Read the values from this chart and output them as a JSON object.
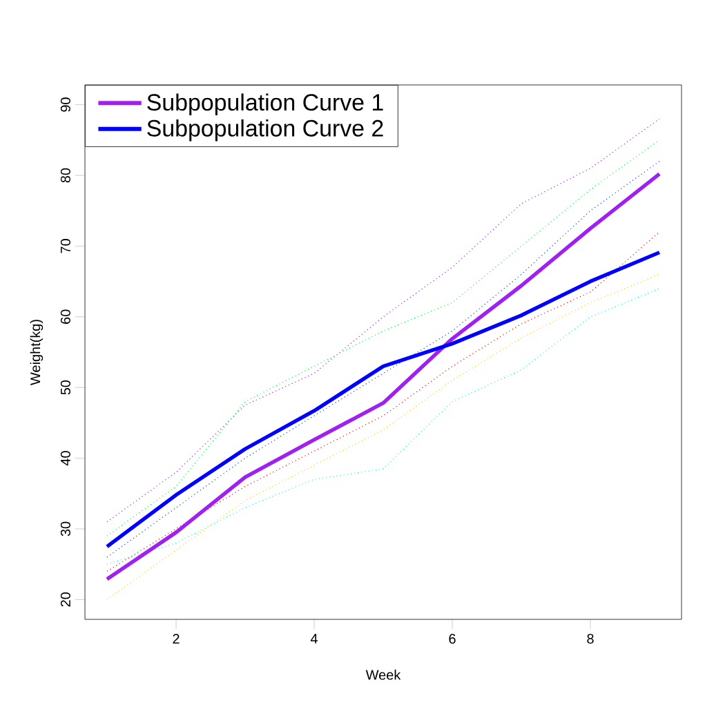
{
  "chart_data": {
    "type": "line",
    "xlabel": "Week",
    "ylabel": "Weight(kg)",
    "x": [
      1,
      2,
      3,
      4,
      5,
      6,
      7,
      8,
      9
    ],
    "xlim": [
      0.68,
      9.32
    ],
    "ylim": [
      17.2,
      92.8
    ],
    "xticks": [
      2,
      4,
      6,
      8
    ],
    "yticks": [
      20,
      30,
      40,
      50,
      60,
      70,
      80,
      90
    ],
    "legend": "top left",
    "series": [
      {
        "color": "#a020f0",
        "line_style": "dotted",
        "values": [
          31,
          38,
          47.5,
          52,
          60,
          67,
          76,
          81,
          88
        ]
      },
      {
        "color": "#ff0000",
        "line_style": "dotted",
        "values": [
          24,
          30,
          36,
          41,
          46,
          53,
          59,
          63.5,
          72
        ]
      },
      {
        "color": "#ffd000",
        "line_style": "dotted",
        "values": [
          20,
          27,
          34,
          39,
          44,
          51,
          57,
          62,
          66
        ]
      },
      {
        "color": "#00ff40",
        "line_style": "dotted",
        "values": [
          29,
          36,
          48,
          53,
          58,
          62,
          70,
          78,
          85
        ]
      },
      {
        "color": "#00ffff",
        "line_style": "dotted",
        "values": [
          25,
          28,
          33,
          37,
          38.5,
          48,
          52.5,
          60,
          64
        ]
      },
      {
        "color": "#0040ff",
        "line_style": "dotted",
        "values": [
          26,
          33,
          40,
          46,
          52,
          58,
          66,
          75,
          82
        ]
      },
      {
        "name": "Subpopulation Curve 1",
        "color": "#a020f0",
        "line_style": "solid",
        "values": [
          22.9,
          29.5,
          37.3,
          42.6,
          47.8,
          56.9,
          64.4,
          72.5,
          80.2
        ]
      },
      {
        "name": "Subpopulation Curve 2",
        "color": "#0000ff",
        "line_style": "solid",
        "values": [
          27.5,
          34.8,
          41.3,
          46.7,
          53.0,
          56.2,
          60.2,
          65.0,
          69.1
        ]
      }
    ]
  }
}
